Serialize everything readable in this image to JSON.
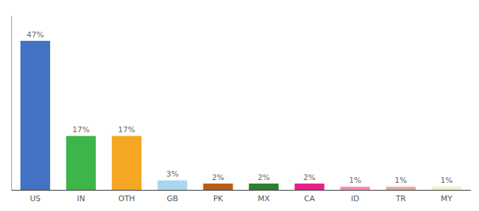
{
  "chart_data": {
    "type": "bar",
    "categories": [
      "US",
      "IN",
      "OTH",
      "GB",
      "PK",
      "MX",
      "CA",
      "ID",
      "TR",
      "MY"
    ],
    "values": [
      47,
      17,
      17,
      3,
      2,
      2,
      2,
      1,
      1,
      1
    ],
    "value_labels": [
      "47%",
      "17%",
      "17%",
      "3%",
      "2%",
      "2%",
      "2%",
      "1%",
      "1%",
      "1%"
    ],
    "colors": [
      "#4472c4",
      "#3db54a",
      "#f5a623",
      "#a8d8f0",
      "#b85c1e",
      "#2e7d32",
      "#e91e8c",
      "#f48cb0",
      "#e8a898",
      "#f0f0c0"
    ],
    "ylim": [
      0,
      55
    ],
    "data_labels": true,
    "tick_labels": "x",
    "grid": false
  }
}
